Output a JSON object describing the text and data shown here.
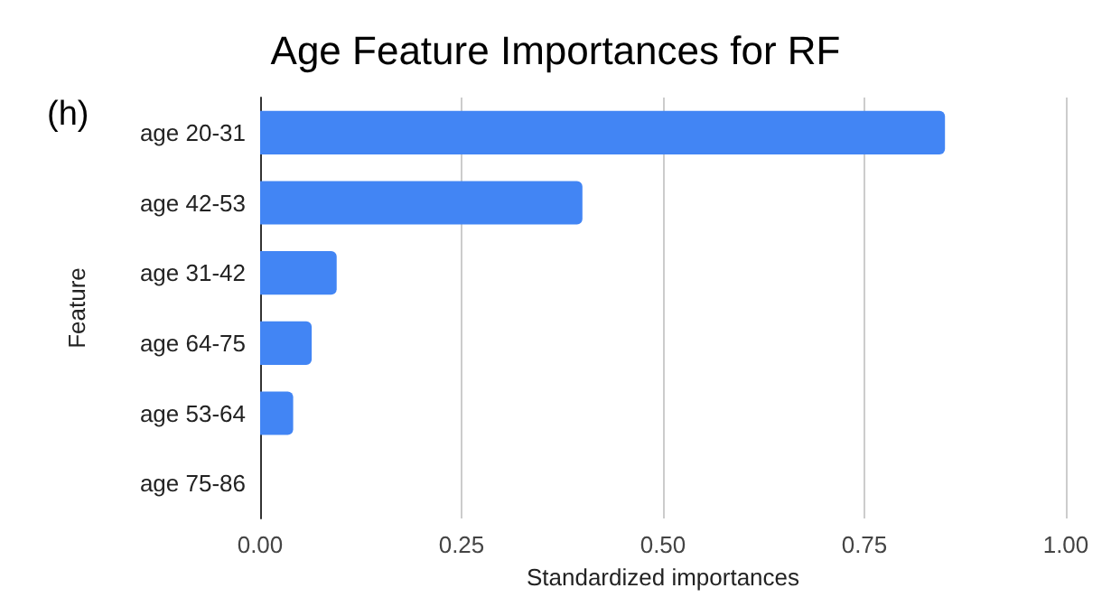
{
  "chart_data": {
    "type": "bar",
    "orientation": "horizontal",
    "title": "Age Feature Importances for RF",
    "xlabel": "Standardized importances",
    "ylabel": "Feature",
    "annotations": [
      "(h)"
    ],
    "categories": [
      "age 20-31",
      "age 42-53",
      "age 31-42",
      "age 64-75",
      "age 53-64",
      "age 75-86"
    ],
    "values": [
      0.85,
      0.4,
      0.095,
      0.064,
      0.041,
      0
    ],
    "color": "#4285f4",
    "xlim": [
      0,
      1
    ],
    "xticks": [
      {
        "value": 0,
        "label": "0.00"
      },
      {
        "value": 0.25,
        "label": "0.25"
      },
      {
        "value": 0.5,
        "label": "0.50"
      },
      {
        "value": 0.75,
        "label": "0.75"
      },
      {
        "value": 1,
        "label": "1.00"
      }
    ],
    "grid": "x"
  }
}
